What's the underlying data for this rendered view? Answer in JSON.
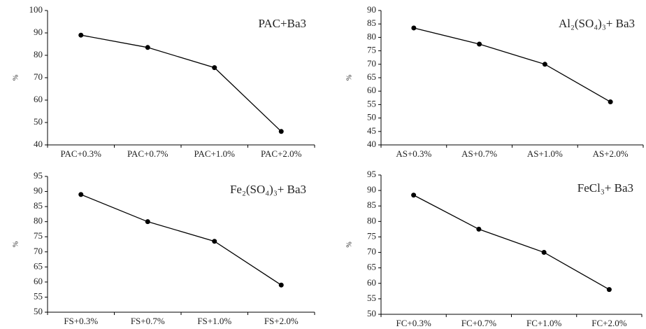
{
  "chart_data": [
    {
      "type": "line",
      "title": "PAC+Ba3",
      "y_label": "%",
      "categories": [
        "PAC+0.3%",
        "PAC+0.7%",
        "PAC+1.0%",
        "PAC+2.0%"
      ],
      "values": [
        89,
        83.5,
        74.5,
        46
      ],
      "color": "#000000",
      "ylim": [
        40,
        100
      ],
      "yticks": [
        40,
        50,
        60,
        70,
        80,
        90,
        100
      ]
    },
    {
      "type": "line",
      "title": "Al₂(SO₄)₃+ Ba3",
      "y_label": "%",
      "categories": [
        "AS+0.3%",
        "AS+0.7%",
        "AS+1.0%",
        "AS+2.0%"
      ],
      "values": [
        83.5,
        77.5,
        70,
        56
      ],
      "color": "#000000",
      "ylim": [
        40,
        90
      ],
      "yticks": [
        40,
        45,
        50,
        55,
        60,
        65,
        70,
        75,
        80,
        85,
        90
      ]
    },
    {
      "type": "line",
      "title": "Fe₂(SO₄)₃+ Ba3",
      "y_label": "%",
      "categories": [
        "FS+0.3%",
        "FS+0.7%",
        "FS+1.0%",
        "FS+2.0%"
      ],
      "values": [
        89,
        80,
        73.5,
        59
      ],
      "color": "#000000",
      "ylim": [
        50,
        95
      ],
      "yticks": [
        50,
        55,
        60,
        65,
        70,
        75,
        80,
        85,
        90,
        95
      ]
    },
    {
      "type": "line",
      "title": "FeCl₃+ Ba3",
      "y_label": "%",
      "categories": [
        "FC+0.3%",
        "FC+0.7%",
        "FC+1.0%",
        "FC+2.0%"
      ],
      "values": [
        88.5,
        77.5,
        70,
        58
      ],
      "color": "#000000",
      "ylim": [
        50,
        95
      ],
      "yticks": [
        50,
        55,
        60,
        65,
        70,
        75,
        80,
        85,
        90,
        95
      ]
    }
  ]
}
